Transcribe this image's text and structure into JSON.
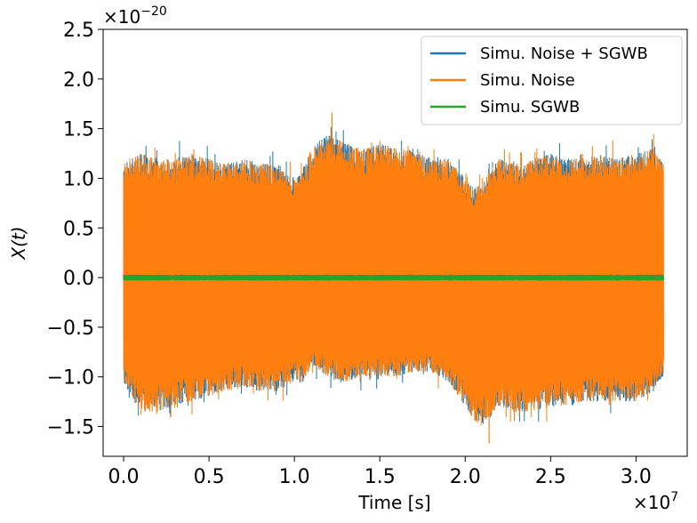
{
  "chart_data": {
    "type": "line",
    "title": "",
    "xlabel": "Time [s]",
    "ylabel": "X(t)",
    "xlim": [
      -0.12,
      3.3
    ],
    "ylim": [
      -1.8,
      2.5
    ],
    "x_multiplier_label": "×10^7",
    "y_multiplier_label": "×10^−20",
    "x_ticks": [
      0.0,
      0.5,
      1.0,
      1.5,
      2.0,
      2.5,
      3.0
    ],
    "x_tick_labels": [
      "0.0",
      "0.5",
      "1.0",
      "1.5",
      "2.0",
      "2.5",
      "3.0"
    ],
    "y_ticks": [
      -1.5,
      -1.0,
      -0.5,
      0.0,
      0.5,
      1.0,
      1.5,
      2.0,
      2.5
    ],
    "y_tick_labels": [
      "−1.5",
      "−1.0",
      "−0.5",
      "0.0",
      "0.5",
      "1.0",
      "1.5",
      "2.0",
      "2.5"
    ],
    "x_range": [
      0.0,
      3.16
    ],
    "legend_position": "top-right",
    "series": [
      {
        "name": "Simu. Noise + SGWB",
        "color": "#1f77b4",
        "kind": "noise-band",
        "envelope_x": [
          0.0,
          0.1,
          0.2,
          0.3,
          0.4,
          0.5,
          0.6,
          0.7,
          0.8,
          0.9,
          1.0,
          1.05,
          1.1,
          1.2,
          1.3,
          1.4,
          1.5,
          1.6,
          1.7,
          1.8,
          1.9,
          2.0,
          2.05,
          2.1,
          2.15,
          2.2,
          2.3,
          2.4,
          2.5,
          2.6,
          2.7,
          2.8,
          2.9,
          3.0,
          3.1,
          3.16
        ],
        "envelope_upper": [
          1.15,
          1.25,
          1.2,
          1.2,
          1.25,
          1.2,
          1.15,
          1.2,
          1.15,
          1.15,
          1.0,
          1.1,
          1.3,
          1.45,
          1.35,
          1.3,
          1.35,
          1.3,
          1.3,
          1.2,
          1.2,
          1.0,
          0.9,
          0.95,
          1.1,
          1.2,
          1.15,
          1.2,
          1.25,
          1.2,
          1.2,
          1.25,
          1.2,
          1.25,
          1.3,
          1.15
        ],
        "envelope_lower": [
          -1.1,
          -1.35,
          -1.35,
          -1.3,
          -1.25,
          -1.2,
          -1.15,
          -1.1,
          -1.15,
          -1.15,
          -1.05,
          -1.05,
          -0.9,
          -1.0,
          -1.05,
          -1.0,
          -1.0,
          -1.0,
          -0.95,
          -0.95,
          -1.05,
          -1.3,
          -1.45,
          -1.5,
          -1.4,
          -1.3,
          -1.35,
          -1.35,
          -1.3,
          -1.3,
          -1.25,
          -1.25,
          -1.25,
          -1.25,
          -1.15,
          -1.0
        ]
      },
      {
        "name": "Simu. Noise",
        "color": "#ff7f0e",
        "kind": "noise-band",
        "envelope_x": [
          0.0,
          0.1,
          0.2,
          0.3,
          0.4,
          0.5,
          0.6,
          0.7,
          0.8,
          0.9,
          1.0,
          1.05,
          1.1,
          1.2,
          1.3,
          1.4,
          1.5,
          1.6,
          1.7,
          1.8,
          1.9,
          2.0,
          2.05,
          2.1,
          2.15,
          2.2,
          2.3,
          2.4,
          2.5,
          2.6,
          2.7,
          2.8,
          2.9,
          3.0,
          3.1,
          3.16
        ],
        "envelope_upper": [
          1.15,
          1.25,
          1.2,
          1.2,
          1.25,
          1.2,
          1.15,
          1.2,
          1.15,
          1.15,
          1.0,
          1.1,
          1.3,
          1.45,
          1.35,
          1.3,
          1.35,
          1.3,
          1.3,
          1.2,
          1.2,
          1.0,
          0.9,
          0.95,
          1.1,
          1.2,
          1.15,
          1.2,
          1.25,
          1.2,
          1.2,
          1.25,
          1.2,
          1.25,
          1.3,
          1.15
        ],
        "envelope_lower": [
          -1.1,
          -1.35,
          -1.35,
          -1.3,
          -1.25,
          -1.2,
          -1.15,
          -1.1,
          -1.15,
          -1.15,
          -1.05,
          -1.05,
          -0.9,
          -1.0,
          -1.05,
          -1.0,
          -1.0,
          -1.0,
          -0.95,
          -0.95,
          -1.05,
          -1.3,
          -1.45,
          -1.5,
          -1.4,
          -1.3,
          -1.35,
          -1.35,
          -1.3,
          -1.3,
          -1.25,
          -1.25,
          -1.25,
          -1.25,
          -1.15,
          -1.0
        ],
        "peak_max": 1.66,
        "peak_min": -1.67
      },
      {
        "name": "Simu. SGWB",
        "color": "#2ca02c",
        "kind": "noise-band",
        "amplitude": 0.03
      }
    ]
  }
}
